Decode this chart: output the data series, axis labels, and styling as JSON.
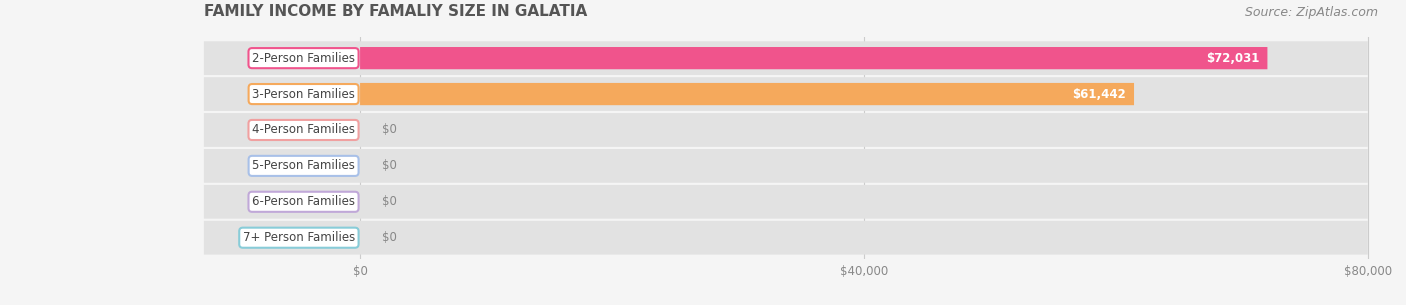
{
  "title": "FAMILY INCOME BY FAMALIY SIZE IN GALATIA",
  "source": "Source: ZipAtlas.com",
  "categories": [
    "2-Person Families",
    "3-Person Families",
    "4-Person Families",
    "5-Person Families",
    "6-Person Families",
    "7+ Person Families"
  ],
  "values": [
    72031,
    61442,
    0,
    0,
    0,
    0
  ],
  "bar_colors": [
    "#f0548c",
    "#f5a95c",
    "#f0a0a0",
    "#a8c0e8",
    "#c0a8d8",
    "#88ccd8"
  ],
  "value_labels": [
    "$72,031",
    "$61,442",
    "$0",
    "$0",
    "$0",
    "$0"
  ],
  "xlim": [
    0,
    80000
  ],
  "xticks": [
    0,
    40000,
    80000
  ],
  "xtick_labels": [
    "$0",
    "$40,000",
    "$80,000"
  ],
  "background_color": "#f5f5f5",
  "row_bg_color": "#e2e2e2",
  "title_fontsize": 11,
  "source_fontsize": 9,
  "label_fontsize": 8.5,
  "value_fontsize": 8.5
}
